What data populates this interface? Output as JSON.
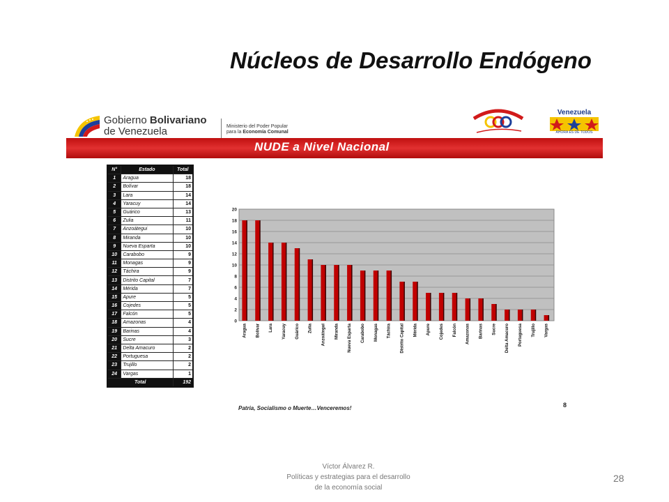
{
  "slide": {
    "title": "Núcleos de Desarrollo Endógeno",
    "number": "28",
    "footer_author": "Víctor Álvarez R.",
    "footer_line1": "Políticas y estrategias  para el desarrollo",
    "footer_line2": "de la economía social"
  },
  "banner": {
    "gob_line1_a": "Gobierno ",
    "gob_line1_b": "Bolivariano",
    "gob_line2": "de Venezuela",
    "ministry_line1": "Ministerio del Poder Popular",
    "ministry_line2_a": "para la ",
    "ministry_line2_b": "Economía Comunal",
    "vzla_label": "Venezuela",
    "vzla_sub": "AHORA ES DE TODOS",
    "nude_title": "NUDE a Nivel Nacional",
    "red_color": "#d11a1a"
  },
  "table": {
    "headers": [
      "N°",
      "Estado",
      "Total"
    ],
    "rows": [
      {
        "n": "1",
        "estado": "Aragua",
        "total": "18"
      },
      {
        "n": "2",
        "estado": "Bolívar",
        "total": "18"
      },
      {
        "n": "3",
        "estado": "Lara",
        "total": "14"
      },
      {
        "n": "4",
        "estado": "Yaracuy",
        "total": "14"
      },
      {
        "n": "5",
        "estado": "Guárico",
        "total": "13"
      },
      {
        "n": "6",
        "estado": "Zulia",
        "total": "11"
      },
      {
        "n": "7",
        "estado": "Anzoátegui",
        "total": "10"
      },
      {
        "n": "8",
        "estado": "Miranda",
        "total": "10"
      },
      {
        "n": "9",
        "estado": "Nueva Esparta",
        "total": "10"
      },
      {
        "n": "10",
        "estado": "Carabobo",
        "total": "9"
      },
      {
        "n": "11",
        "estado": "Monagas",
        "total": "9"
      },
      {
        "n": "12",
        "estado": "Táchira",
        "total": "9"
      },
      {
        "n": "13",
        "estado": "Distrito Capital",
        "total": "7"
      },
      {
        "n": "14",
        "estado": "Mérida",
        "total": "7"
      },
      {
        "n": "15",
        "estado": "Apure",
        "total": "5"
      },
      {
        "n": "16",
        "estado": "Cojedes",
        "total": "5"
      },
      {
        "n": "17",
        "estado": "Falcón",
        "total": "5"
      },
      {
        "n": "18",
        "estado": "Amazonas",
        "total": "4"
      },
      {
        "n": "19",
        "estado": "Barinas",
        "total": "4"
      },
      {
        "n": "20",
        "estado": "Sucre",
        "total": "3"
      },
      {
        "n": "21",
        "estado": "Delta Amacuro",
        "total": "2"
      },
      {
        "n": "22",
        "estado": "Portuguesa",
        "total": "2"
      },
      {
        "n": "23",
        "estado": "Trujillo",
        "total": "2"
      },
      {
        "n": "24",
        "estado": "Vargas",
        "total": "1"
      }
    ],
    "total_label": "Total",
    "total_value": "192"
  },
  "chart_data": {
    "type": "bar",
    "categories": [
      "Aragua",
      "Bolívar",
      "Lara",
      "Yaracuy",
      "Guárico",
      "Zulia",
      "Anzoátegui",
      "Miranda",
      "Nueva Esparta",
      "Carabobo",
      "Monagas",
      "Táchira",
      "Distrito Capital",
      "Mérida",
      "Apure",
      "Cojedes",
      "Falcón",
      "Amazonas",
      "Barinas",
      "Sucre",
      "Delta Amacuro",
      "Portuguesa",
      "Trujillo",
      "Vargas"
    ],
    "values": [
      18,
      18,
      14,
      14,
      13,
      11,
      10,
      10,
      10,
      9,
      9,
      9,
      7,
      7,
      5,
      5,
      5,
      4,
      4,
      3,
      2,
      2,
      2,
      1
    ],
    "ylim": [
      0,
      20
    ],
    "yticks": [
      "0",
      "2",
      "4",
      "6",
      "8",
      "10",
      "12",
      "14",
      "16",
      "18",
      "20"
    ],
    "grid": true,
    "bar_color": "#c00000",
    "plot_background": "#c0c0c0"
  },
  "slogan": "Patria, Socialismo o Muerte…Venceremos!",
  "page_mark": "8"
}
